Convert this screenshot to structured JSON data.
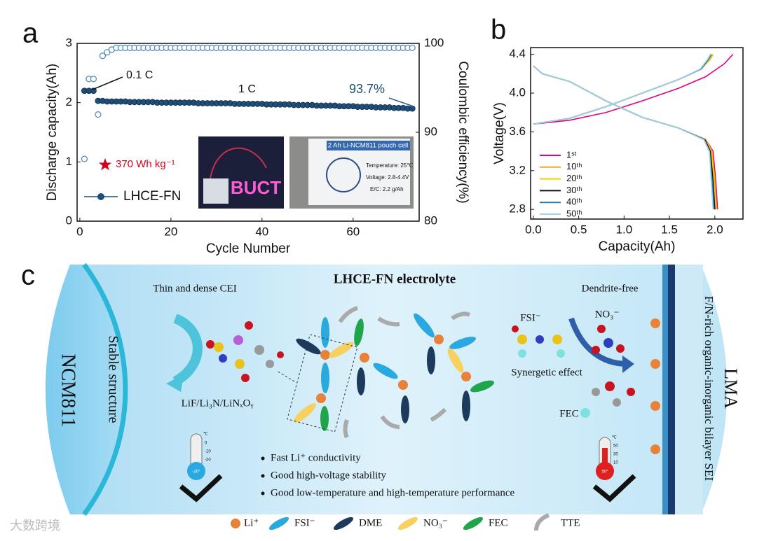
{
  "panels": {
    "a": "a",
    "b": "b",
    "c": "c"
  },
  "chart_data": [
    {
      "type": "scatter",
      "xlabel": "Cycle Number",
      "ylabel": "Discharge capacity(Ah)",
      "y2label": "Coulombic efficiency(%)",
      "xlim": [
        -0.6,
        74.5
      ],
      "xticks": [
        0,
        20,
        40,
        60
      ],
      "ylim": [
        0,
        3
      ],
      "yticks": [
        0,
        1,
        2,
        3
      ],
      "y2lim": [
        80,
        100
      ],
      "y2ticks": [
        80,
        90,
        100
      ],
      "x": [
        1,
        2,
        3,
        4,
        5,
        6,
        7,
        8,
        9,
        10,
        11,
        12,
        13,
        14,
        15,
        16,
        17,
        18,
        19,
        20,
        21,
        22,
        23,
        24,
        25,
        26,
        27,
        28,
        29,
        30,
        31,
        32,
        33,
        34,
        35,
        36,
        37,
        38,
        39,
        40,
        41,
        42,
        43,
        44,
        45,
        46,
        47,
        48,
        49,
        50,
        51,
        52,
        53,
        54,
        55,
        56,
        57,
        58,
        59,
        60,
        61,
        62,
        63,
        64,
        65,
        66,
        67,
        68,
        69,
        70,
        71,
        72,
        73
      ],
      "series": [
        {
          "name": "LHCE-FN",
          "color": "#1f4e79",
          "values": [
            2.2,
            2.2,
            2.2,
            2.03,
            2.03,
            2.02,
            2.02,
            2.02,
            2.02,
            2.02,
            2.01,
            2.01,
            2.01,
            2.01,
            2.01,
            2.01,
            2.0,
            2.0,
            2.0,
            2.0,
            2.0,
            2.0,
            2.0,
            2.0,
            2.0,
            1.99,
            1.99,
            1.99,
            1.99,
            1.99,
            1.99,
            1.99,
            1.99,
            1.98,
            1.98,
            1.98,
            1.98,
            1.98,
            1.98,
            1.98,
            1.97,
            1.97,
            1.97,
            1.97,
            1.97,
            1.97,
            1.96,
            1.96,
            1.96,
            1.96,
            1.96,
            1.95,
            1.95,
            1.95,
            1.95,
            1.95,
            1.94,
            1.94,
            1.94,
            1.94,
            1.93,
            1.93,
            1.93,
            1.93,
            1.92,
            1.92,
            1.92,
            1.92,
            1.91,
            1.91,
            1.91,
            1.9,
            1.9
          ]
        },
        {
          "color": "#4a86b8",
          "axis": "y2",
          "values": [
            87,
            96,
            96,
            92,
            98.6,
            99.0,
            99.3,
            99.5,
            99.5,
            99.5,
            99.5,
            99.5,
            99.5,
            99.5,
            99.5,
            99.5,
            99.5,
            99.5,
            99.5,
            99.5,
            99.5,
            99.5,
            99.5,
            99.5,
            99.5,
            99.5,
            99.5,
            99.5,
            99.5,
            99.5,
            99.5,
            99.5,
            99.5,
            99.5,
            99.5,
            99.5,
            99.5,
            99.5,
            99.5,
            99.5,
            99.5,
            99.5,
            99.5,
            99.5,
            99.5,
            99.5,
            99.5,
            99.5,
            99.5,
            99.5,
            99.5,
            99.5,
            99.5,
            99.5,
            99.5,
            99.5,
            99.5,
            99.5,
            99.5,
            99.5,
            99.5,
            99.5,
            99.5,
            99.5,
            99.5,
            99.5,
            99.5,
            99.5,
            99.5,
            99.5,
            99.5,
            99.5,
            99.5
          ]
        }
      ],
      "annotations": [
        "0.1 C",
        "1 C",
        "93.7%",
        "370 Wh kg⁻¹"
      ],
      "photos": {
        "text": "BUCT",
        "cell": "2 Ah Li-NCM811 pouch cell",
        "temperature": "Temperature: 25℃",
        "voltage": "Voltage: 2.8-4.4V",
        "ec": "E/C: 2.2 g/Ah"
      }
    },
    {
      "type": "line",
      "xlabel": "Capacity(Ah)",
      "ylabel": "Voltage(V)",
      "xlim": [
        -0.03,
        2.31
      ],
      "xticks": [
        {
          "value": 0,
          "label": "0.0"
        },
        0.5,
        {
          "value": 1,
          "label": "1.0"
        },
        1.5,
        {
          "value": 2,
          "label": "2.0"
        }
      ],
      "ylim": [
        2.7,
        4.47
      ],
      "yticks": [
        2.8,
        3.2,
        3.6,
        {
          "value": 4,
          "label": "4.0"
        },
        4.4
      ],
      "series": [
        {
          "name": "1ˢᵗ",
          "color": "#e6007e",
          "charge": {
            "x": [
              0,
              0.4,
              0.8,
              1.2,
              1.6,
              1.9,
              2.1,
              2.2
            ],
            "y": [
              3.68,
              3.72,
              3.8,
              3.92,
              4.05,
              4.17,
              4.3,
              4.4
            ]
          },
          "discharge": {
            "x": [
              0,
              0.1,
              0.4,
              0.8,
              1.2,
              1.6,
              1.9,
              1.98,
              2.01,
              2.03
            ],
            "y": [
              4.28,
              4.2,
              4.12,
              3.92,
              3.75,
              3.64,
              3.52,
              3.4,
              3.1,
              2.8
            ]
          }
        },
        {
          "name": "10ᵗʰ",
          "color": "#f5a623",
          "charge": {
            "x": [
              0,
              0.4,
              0.8,
              1.2,
              1.6,
              1.85,
              1.95,
              1.98
            ],
            "y": [
              3.68,
              3.74,
              3.86,
              4.0,
              4.14,
              4.25,
              4.35,
              4.4
            ]
          },
          "discharge": {
            "x": [
              0,
              0.1,
              0.4,
              0.8,
              1.2,
              1.6,
              1.9,
              1.97,
              2.0,
              2.02
            ],
            "y": [
              4.28,
              4.2,
              4.12,
              3.92,
              3.75,
              3.64,
              3.52,
              3.4,
              3.1,
              2.8
            ]
          }
        },
        {
          "name": "20ᵗʰ",
          "color": "#f0d000",
          "charge": {
            "x": [
              0,
              0.4,
              0.8,
              1.2,
              1.6,
              1.85,
              1.94,
              1.97
            ],
            "y": [
              3.68,
              3.74,
              3.86,
              4.0,
              4.14,
              4.25,
              4.35,
              4.4
            ]
          },
          "discharge": {
            "x": [
              0,
              0.1,
              0.4,
              0.8,
              1.2,
              1.6,
              1.89,
              1.96,
              1.99,
              2.01
            ],
            "y": [
              4.28,
              4.2,
              4.12,
              3.92,
              3.75,
              3.64,
              3.52,
              3.4,
              3.1,
              2.8
            ]
          }
        },
        {
          "name": "30ᵗʰ",
          "color": "#111111",
          "charge": {
            "x": [
              0,
              0.4,
              0.8,
              1.2,
              1.6,
              1.85,
              1.93,
              1.96
            ],
            "y": [
              3.68,
              3.74,
              3.86,
              4.0,
              4.14,
              4.25,
              4.35,
              4.4
            ]
          },
          "discharge": {
            "x": [
              0,
              0.1,
              0.4,
              0.8,
              1.2,
              1.6,
              1.89,
              1.95,
              1.98,
              2.0
            ],
            "y": [
              4.28,
              4.2,
              4.12,
              3.92,
              3.75,
              3.64,
              3.52,
              3.4,
              3.1,
              2.8
            ]
          }
        },
        {
          "name": "40ᵗʰ",
          "color": "#2a7fa8",
          "charge": {
            "x": [
              0,
              0.4,
              0.8,
              1.2,
              1.6,
              1.85,
              1.93,
              1.96
            ],
            "y": [
              3.68,
              3.74,
              3.86,
              4.0,
              4.14,
              4.25,
              4.35,
              4.4
            ]
          },
          "discharge": {
            "x": [
              0,
              0.1,
              0.4,
              0.8,
              1.2,
              1.6,
              1.88,
              1.94,
              1.97,
              1.99
            ],
            "y": [
              4.28,
              4.2,
              4.12,
              3.92,
              3.75,
              3.64,
              3.52,
              3.4,
              3.1,
              2.8
            ]
          }
        },
        {
          "name": "50ᵗʰ",
          "color": "#9fd3f0",
          "charge": {
            "x": [
              0,
              0.4,
              0.8,
              1.2,
              1.6,
              1.84,
              1.92,
              1.95
            ],
            "y": [
              3.68,
              3.74,
              3.86,
              4.0,
              4.14,
              4.25,
              4.35,
              4.4
            ]
          },
          "discharge": {
            "x": [
              0,
              0.1,
              0.4,
              0.8,
              1.2,
              1.6,
              1.88,
              1.94,
              1.96,
              1.98
            ],
            "y": [
              4.28,
              4.2,
              4.12,
              3.92,
              3.75,
              3.64,
              3.52,
              3.4,
              3.1,
              2.8
            ]
          }
        }
      ]
    }
  ],
  "diagram": {
    "title": "LHCE-FN electrolyte",
    "cathode": "NCM811",
    "stable": "Stable structure",
    "cei": "Thin and dense CEI",
    "cei_comp": "LiF/Li₃N/LiNₓOᵧ",
    "dendrite": "Dendrite-free",
    "fsi": "FSI⁻",
    "no3": "NO₃⁻",
    "synergy": "Synergetic effect",
    "fec": "FEC",
    "anode": "LMA",
    "sei": "F/N-rich organic-inorganic bilayer SEI",
    "bullets": [
      "Fast Li⁺ conductivity",
      "Good high-voltage stability",
      "Good low-temperature and high-temperature performance"
    ],
    "cold": {
      "unit": "℃",
      "ticks": [
        "0",
        "-10",
        "-20"
      ],
      "reading": "-20°"
    },
    "hot": {
      "unit": "℃",
      "ticks": [
        "50",
        "30",
        "10"
      ],
      "reading": "50°"
    },
    "legend": [
      "Li⁺",
      "FSI⁻",
      "DME",
      "NO₃⁻",
      "FEC",
      "TTE"
    ]
  },
  "watermark": "大数跨境"
}
